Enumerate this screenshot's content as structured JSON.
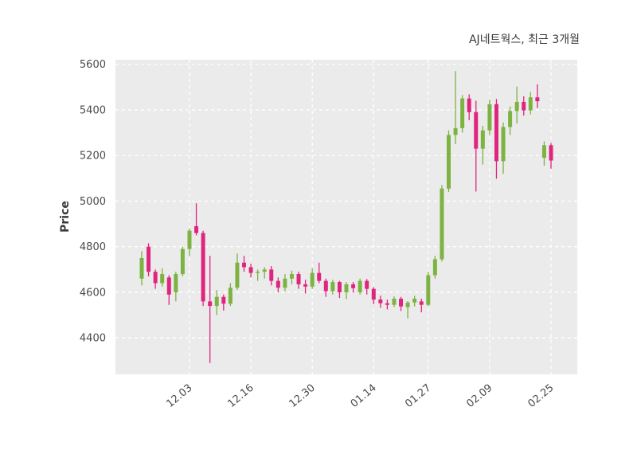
{
  "chart_data": {
    "type": "candlestick",
    "title": "AJ네트웍스, 최근 3개월",
    "ylabel": "Price",
    "ylim": [
      4240,
      5620
    ],
    "yticks": [
      4400,
      4600,
      4800,
      5000,
      5200,
      5400,
      5600
    ],
    "xticks": [
      {
        "index": 7,
        "label": "12.03"
      },
      {
        "index": 16,
        "label": "12.16"
      },
      {
        "index": 25,
        "label": "12.30"
      },
      {
        "index": 34,
        "label": "01.14"
      },
      {
        "index": 42,
        "label": "01.27"
      },
      {
        "index": 51,
        "label": "02.09"
      },
      {
        "index": 60,
        "label": "02.25"
      }
    ],
    "grid": "dashed",
    "legend": "none",
    "colors": {
      "up": "#7cb342",
      "down": "#e0257e",
      "plot_bg": "#ebebeb",
      "grid": "#ffffff",
      "tick_label": "#4a4a4a",
      "title": "#3a3a3a"
    },
    "candles": [
      [
        4660,
        4780,
        4630,
        4750
      ],
      [
        4800,
        4815,
        4670,
        4690
      ],
      [
        4690,
        4700,
        4615,
        4640
      ],
      [
        4640,
        4705,
        4625,
        4680
      ],
      [
        4665,
        4675,
        4545,
        4590
      ],
      [
        4600,
        4690,
        4560,
        4680
      ],
      [
        4680,
        4800,
        4670,
        4790
      ],
      [
        4790,
        4880,
        4760,
        4870
      ],
      [
        4890,
        4990,
        4850,
        4860
      ],
      [
        4860,
        4870,
        4540,
        4560
      ],
      [
        4560,
        4760,
        4290,
        4540
      ],
      [
        4540,
        4610,
        4500,
        4580
      ],
      [
        4580,
        4590,
        4520,
        4550
      ],
      [
        4550,
        4640,
        4540,
        4620
      ],
      [
        4620,
        4770,
        4610,
        4730
      ],
      [
        4730,
        4760,
        4690,
        4710
      ],
      [
        4710,
        4725,
        4665,
        4685
      ],
      [
        4685,
        4700,
        4650,
        4690
      ],
      [
        4690,
        4710,
        4660,
        4700
      ],
      [
        4700,
        4715,
        4630,
        4650
      ],
      [
        4650,
        4665,
        4600,
        4620
      ],
      [
        4620,
        4680,
        4605,
        4660
      ],
      [
        4660,
        4695,
        4635,
        4680
      ],
      [
        4680,
        4690,
        4615,
        4635
      ],
      [
        4635,
        4655,
        4595,
        4625
      ],
      [
        4625,
        4705,
        4615,
        4685
      ],
      [
        4685,
        4730,
        4640,
        4650
      ],
      [
        4650,
        4660,
        4580,
        4605
      ],
      [
        4605,
        4655,
        4590,
        4645
      ],
      [
        4645,
        4650,
        4575,
        4600
      ],
      [
        4600,
        4645,
        4570,
        4635
      ],
      [
        4635,
        4645,
        4598,
        4618
      ],
      [
        4600,
        4660,
        4590,
        4650
      ],
      [
        4650,
        4658,
        4590,
        4615
      ],
      [
        4615,
        4622,
        4548,
        4568
      ],
      [
        4568,
        4585,
        4532,
        4552
      ],
      [
        4552,
        4568,
        4525,
        4545
      ],
      [
        4545,
        4582,
        4535,
        4572
      ],
      [
        4572,
        4580,
        4518,
        4538
      ],
      [
        4535,
        4562,
        4485,
        4555
      ],
      [
        4555,
        4585,
        4538,
        4572
      ],
      [
        4560,
        4572,
        4512,
        4545
      ],
      [
        4545,
        4690,
        4540,
        4675
      ],
      [
        4675,
        4760,
        4660,
        4745
      ],
      [
        4745,
        5070,
        4735,
        5055
      ],
      [
        5055,
        5310,
        5040,
        5290
      ],
      [
        5290,
        5570,
        5250,
        5320
      ],
      [
        5320,
        5465,
        5300,
        5450
      ],
      [
        5450,
        5468,
        5355,
        5390
      ],
      [
        5390,
        5440,
        5042,
        5230
      ],
      [
        5230,
        5330,
        5160,
        5310
      ],
      [
        5310,
        5445,
        5290,
        5425
      ],
      [
        5425,
        5448,
        5098,
        5175
      ],
      [
        5175,
        5345,
        5120,
        5325
      ],
      [
        5325,
        5415,
        5290,
        5395
      ],
      [
        5395,
        5502,
        5340,
        5435
      ],
      [
        5435,
        5460,
        5375,
        5398
      ],
      [
        5398,
        5478,
        5380,
        5455
      ],
      [
        5455,
        5512,
        5408,
        5438
      ],
      [
        5190,
        5262,
        5155,
        5245
      ],
      [
        5245,
        5255,
        5142,
        5178
      ]
    ]
  }
}
